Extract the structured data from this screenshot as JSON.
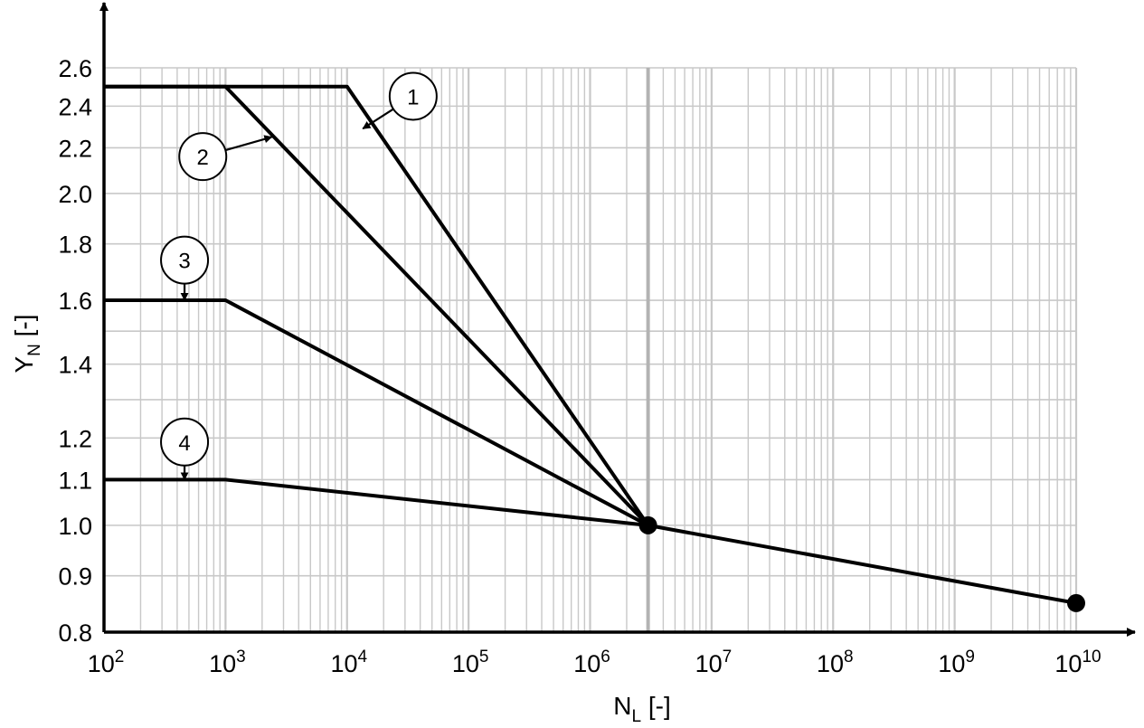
{
  "chart_data": {
    "type": "line",
    "xscale": "log",
    "xlim": [
      100,
      10000000000
    ],
    "yscale": "log",
    "ylim": [
      0.8,
      2.6
    ],
    "grid": true,
    "xlabel": {
      "main": "N",
      "sub": "L",
      "unit": "[-]"
    },
    "ylabel": {
      "main": "Y",
      "sub": "N",
      "unit": "[-]"
    },
    "x_ticks": [
      {
        "value": 100,
        "base": "10",
        "exp": "2"
      },
      {
        "value": 1000,
        "base": "10",
        "exp": "3"
      },
      {
        "value": 10000,
        "base": "10",
        "exp": "4"
      },
      {
        "value": 100000,
        "base": "10",
        "exp": "5"
      },
      {
        "value": 1000000,
        "base": "10",
        "exp": "6"
      },
      {
        "value": 10000000,
        "base": "10",
        "exp": "7"
      },
      {
        "value": 100000000,
        "base": "10",
        "exp": "8"
      },
      {
        "value": 1000000000,
        "base": "10",
        "exp": "9"
      },
      {
        "value": 10000000000,
        "base": "10",
        "exp": "10"
      }
    ],
    "y_ticks": [
      {
        "value": 0.8,
        "label": "0.8"
      },
      {
        "value": 0.9,
        "label": "0.9"
      },
      {
        "value": 1.0,
        "label": "1.0"
      },
      {
        "value": 1.1,
        "label": "1.1"
      },
      {
        "value": 1.2,
        "label": "1.2"
      },
      {
        "value": 1.4,
        "label": "1.4"
      },
      {
        "value": 1.6,
        "label": "1.6"
      },
      {
        "value": 1.8,
        "label": "1.8"
      },
      {
        "value": 2.0,
        "label": "2.0"
      },
      {
        "value": 2.2,
        "label": "2.2"
      },
      {
        "value": 2.4,
        "label": "2.4"
      },
      {
        "value": 2.6,
        "label": "2.6"
      }
    ],
    "series": [
      {
        "label": "1",
        "points": [
          [
            100,
            2.5
          ],
          [
            10000,
            2.5
          ],
          [
            3000000,
            1.0
          ]
        ]
      },
      {
        "label": "2",
        "points": [
          [
            100,
            2.5
          ],
          [
            1000,
            2.5
          ],
          [
            3000000,
            1.0
          ]
        ]
      },
      {
        "label": "3",
        "points": [
          [
            100,
            1.6
          ],
          [
            1000,
            1.6
          ],
          [
            3000000,
            1.0
          ]
        ]
      },
      {
        "label": "4",
        "points": [
          [
            100,
            1.1
          ],
          [
            1000,
            1.1
          ],
          [
            3000000,
            1.0
          ]
        ]
      }
    ],
    "common_line": {
      "points": [
        [
          3000000,
          1.0
        ],
        [
          10000000000,
          0.85
        ]
      ]
    },
    "markers": [
      [
        3000000,
        1.0
      ],
      [
        10000000000,
        0.85
      ]
    ],
    "highlight_x": 3000000,
    "callouts": [
      {
        "label": "1",
        "at": [
          13500,
          2.29
        ],
        "circle": [
          35000,
          2.45
        ]
      },
      {
        "label": "2",
        "at": [
          2400,
          2.25
        ],
        "circle": [
          650,
          2.16
        ]
      },
      {
        "label": "3",
        "at": [
          460,
          1.6
        ],
        "circle": [
          460,
          1.74
        ]
      },
      {
        "label": "4",
        "at": [
          460,
          1.1
        ],
        "circle": [
          460,
          1.19
        ]
      }
    ],
    "colors": {
      "line": "#000000",
      "grid": "#c8c8c8",
      "axis": "#000000"
    }
  }
}
